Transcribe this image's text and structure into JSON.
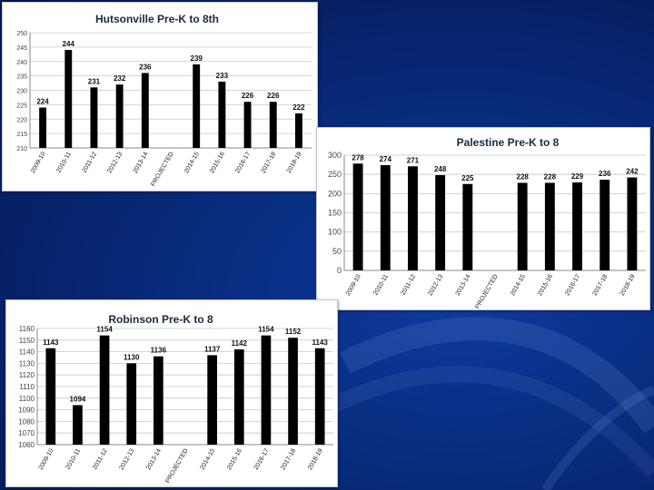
{
  "colors": {
    "background": "#082a7a",
    "bar": "#000000",
    "panel": "#ffffff"
  },
  "chart_data": [
    {
      "id": "hutsonville",
      "type": "bar",
      "title": "Hutsonville Pre-K to 8th",
      "categories": [
        "2009-10",
        "2010-11",
        "2011-12",
        "2012-13",
        "2013-14",
        "PROJECTED",
        "2014-15",
        "2015-16",
        "2016-17",
        "2017-18",
        "2018-19"
      ],
      "values": [
        224,
        244,
        231,
        232,
        236,
        null,
        239,
        233,
        226,
        226,
        222
      ],
      "labels": [
        "224",
        "244",
        "231",
        "232",
        "236",
        "",
        "239",
        "233",
        "226",
        "226",
        "222"
      ],
      "ylim": [
        210,
        250
      ],
      "yticks": [
        210,
        215,
        220,
        225,
        230,
        235,
        240,
        245,
        250
      ],
      "grid": true,
      "xlabel": "",
      "ylabel": ""
    },
    {
      "id": "palestine",
      "type": "bar",
      "title": "Palestine Pre-K to 8",
      "categories": [
        "2009-10",
        "2010-11",
        "2011-12",
        "2012-13",
        "2013-14",
        "PROJECTED",
        "2014-15",
        "2015-16",
        "2016-17",
        "2017-18",
        "2018-19"
      ],
      "values": [
        278,
        274,
        271,
        248,
        225,
        null,
        228,
        228,
        229,
        236,
        242
      ],
      "labels": [
        "278",
        "274",
        "271",
        "248",
        "225",
        "",
        "228",
        "228",
        "229",
        "236",
        "242"
      ],
      "ylim": [
        0,
        300
      ],
      "yticks": [
        0,
        50,
        100,
        150,
        200,
        250,
        300
      ],
      "grid": true,
      "xlabel": "",
      "ylabel": ""
    },
    {
      "id": "robinson",
      "type": "bar",
      "title": "Robinson Pre-K to 8",
      "categories": [
        "2009-10",
        "2010-11",
        "2011-12",
        "2012-13",
        "2013-14",
        "PROJECTED",
        "2014-15",
        "2015-16",
        "2016-17",
        "2017-18",
        "2018-19"
      ],
      "values": [
        1143,
        1094,
        1154,
        1130,
        1136,
        null,
        1137,
        1142,
        1154,
        1152,
        1143
      ],
      "labels": [
        "1143",
        "1094",
        "1154",
        "1130",
        "1136",
        "",
        "1137",
        "1142",
        "1154",
        "1152",
        "1143"
      ],
      "ylim": [
        1060,
        1160
      ],
      "yticks": [
        1060,
        1070,
        1080,
        1090,
        1100,
        1110,
        1120,
        1130,
        1140,
        1150,
        1160
      ],
      "grid": true,
      "xlabel": "",
      "ylabel": ""
    }
  ]
}
